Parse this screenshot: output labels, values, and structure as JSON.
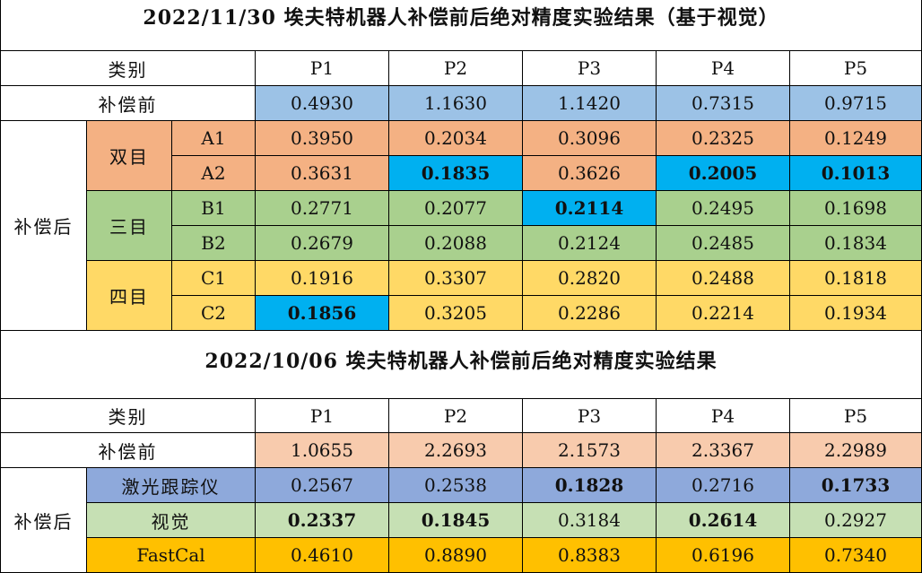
{
  "section1": {
    "title": "2022/11/30 埃夫特机器人补偿前后绝对精度实验结果（基于视觉）",
    "header": {
      "category": "类别",
      "cols": [
        "P1",
        "P2",
        "P3",
        "P4",
        "P5"
      ]
    },
    "before": {
      "label": "补偿前",
      "values": [
        "0.4930",
        "1.1630",
        "1.1420",
        "0.7315",
        "0.9715"
      ]
    },
    "after_label": "补偿后",
    "groups": [
      {
        "label": "双目",
        "rows": [
          {
            "label": "A1",
            "values": [
              "0.3950",
              "0.2034",
              "0.3096",
              "0.2325",
              "0.1249"
            ]
          },
          {
            "label": "A2",
            "values": [
              "0.3631",
              "0.1835",
              "0.3626",
              "0.2005",
              "0.1013"
            ]
          }
        ]
      },
      {
        "label": "三目",
        "rows": [
          {
            "label": "B1",
            "values": [
              "0.2771",
              "0.2077",
              "0.2114",
              "0.2495",
              "0.1698"
            ]
          },
          {
            "label": "B2",
            "values": [
              "0.2679",
              "0.2088",
              "0.2124",
              "0.2485",
              "0.1834"
            ]
          }
        ]
      },
      {
        "label": "四目",
        "rows": [
          {
            "label": "C1",
            "values": [
              "0.1916",
              "0.3307",
              "0.2820",
              "0.2488",
              "0.1818"
            ]
          },
          {
            "label": "C2",
            "values": [
              "0.1856",
              "0.3205",
              "0.2286",
              "0.2214",
              "0.1934"
            ]
          }
        ]
      }
    ]
  },
  "section2": {
    "title": "2022/10/06 埃夫特机器人补偿前后绝对精度实验结果",
    "header": {
      "category": "类别",
      "cols": [
        "P1",
        "P2",
        "P3",
        "P4",
        "P5"
      ]
    },
    "before": {
      "label": "补偿前",
      "values": [
        "1.0655",
        "2.2693",
        "2.1573",
        "2.3367",
        "2.2989"
      ]
    },
    "after_label": "补偿后",
    "rows": [
      {
        "label": "激光跟踪仪",
        "values": [
          "0.2567",
          "0.2538",
          "0.1828",
          "0.2716",
          "0.1733"
        ]
      },
      {
        "label": "视觉",
        "values": [
          "0.2337",
          "0.1845",
          "0.3184",
          "0.2614",
          "0.2927"
        ]
      },
      {
        "label": "FastCal",
        "values": [
          "0.4610",
          "0.8890",
          "0.8383",
          "0.6196",
          "0.7340"
        ]
      }
    ]
  },
  "colors": {
    "before_blue": "#9cc2e6",
    "binocular_orange": "#f4b183",
    "trinocular_green": "#a9d08e",
    "quad_yellow": "#ffd966",
    "highlight_cyan": "#00b0f0",
    "before_peach": "#f8cbad",
    "laser_periwinkle": "#8ea9db",
    "vision_lightgreen": "#c6e0b4",
    "fastcal_gold": "#ffc000"
  }
}
